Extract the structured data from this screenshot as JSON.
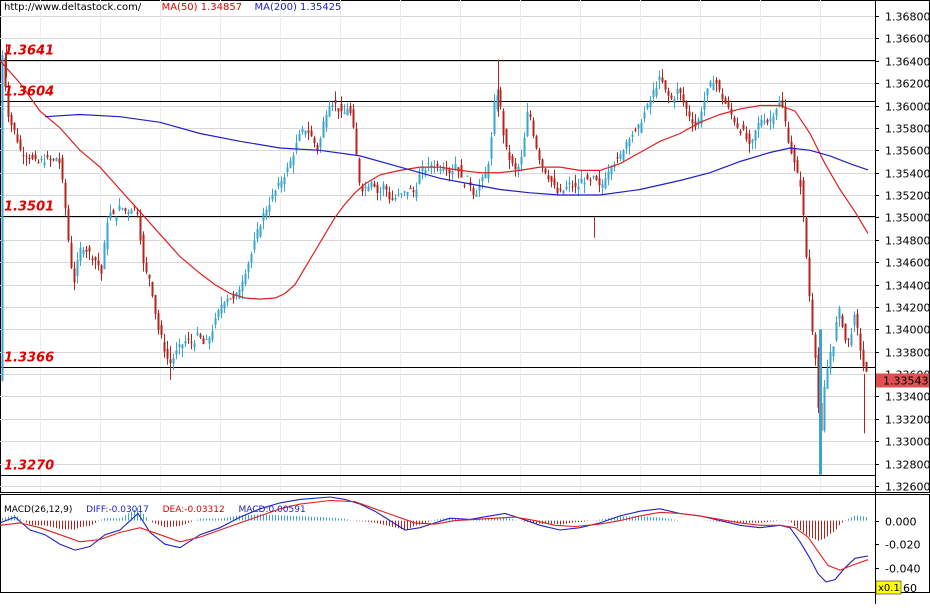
{
  "header": {
    "source": "http://www.deltastock.com/",
    "ma50_label": "MA(50)",
    "ma50_value": "1.34857",
    "ma200_label": "MA(200)",
    "ma200_value": "1.35425"
  },
  "colors": {
    "up_candle": "#3aa6cf",
    "down_candle": "#b4241f",
    "ma50": "#e02020",
    "ma200": "#2020c8",
    "level_label": "#e00000",
    "price_tag_bg": "#e05050",
    "grid": "#d7d7d7"
  },
  "chart_data": [
    {
      "type": "candlestick",
      "name": "price",
      "ylim": [
        1.3253,
        1.3693
      ],
      "y_ticks": [
        "1.36800",
        "1.36600",
        "1.36400",
        "1.36200",
        "1.36000",
        "1.35800",
        "1.35600",
        "1.35400",
        "1.35200",
        "1.35000",
        "1.34800",
        "1.34600",
        "1.34400",
        "1.34200",
        "1.34000",
        "1.33800",
        "1.33600",
        "1.33400",
        "1.33200",
        "1.33000",
        "1.32800",
        "1.32600"
      ],
      "last_price": "1.33543",
      "levels": [
        {
          "label": "1.3641",
          "value": 1.3641
        },
        {
          "label": "1.3604",
          "value": 1.3604
        },
        {
          "label": "1.3501",
          "value": 1.3501
        },
        {
          "label": "1.3366",
          "value": 1.3366
        },
        {
          "label": "1.3270",
          "value": 1.327
        }
      ],
      "close_path": [
        [
          0,
          1.3625
        ],
        [
          3,
          1.3655
        ],
        [
          6,
          1.36
        ],
        [
          10,
          1.3585
        ],
        [
          15,
          1.3575
        ],
        [
          20,
          1.356
        ],
        [
          28,
          1.3555
        ],
        [
          36,
          1.3548
        ],
        [
          44,
          1.3552
        ],
        [
          52,
          1.355
        ],
        [
          58,
          1.3555
        ],
        [
          63,
          1.3525
        ],
        [
          66,
          1.35
        ],
        [
          69,
          1.347
        ],
        [
          72,
          1.345
        ],
        [
          75,
          1.344
        ],
        [
          78,
          1.3468
        ],
        [
          82,
          1.3475
        ],
        [
          87,
          1.347
        ],
        [
          92,
          1.3465
        ],
        [
          97,
          1.346
        ],
        [
          101,
          1.345
        ],
        [
          104,
          1.3475
        ],
        [
          108,
          1.3505
        ],
        [
          114,
          1.35
        ],
        [
          120,
          1.351
        ],
        [
          126,
          1.3505
        ],
        [
          132,
          1.351
        ],
        [
          138,
          1.3505
        ],
        [
          142,
          1.346
        ],
        [
          146,
          1.345
        ],
        [
          150,
          1.3445
        ],
        [
          154,
          1.342
        ],
        [
          158,
          1.34
        ],
        [
          162,
          1.339
        ],
        [
          166,
          1.3375
        ],
        [
          170,
          1.337
        ],
        [
          175,
          1.3378
        ],
        [
          180,
          1.3385
        ],
        [
          186,
          1.339
        ],
        [
          192,
          1.3388
        ],
        [
          198,
          1.3395
        ],
        [
          204,
          1.3385
        ],
        [
          210,
          1.3395
        ],
        [
          216,
          1.341
        ],
        [
          222,
          1.3425
        ],
        [
          228,
          1.343
        ],
        [
          234,
          1.3425
        ],
        [
          240,
          1.344
        ],
        [
          246,
          1.3455
        ],
        [
          252,
          1.347
        ],
        [
          258,
          1.349
        ],
        [
          264,
          1.3505
        ],
        [
          270,
          1.3515
        ],
        [
          276,
          1.3525
        ],
        [
          282,
          1.3535
        ],
        [
          288,
          1.3545
        ],
        [
          294,
          1.356
        ],
        [
          300,
          1.3575
        ],
        [
          306,
          1.358
        ],
        [
          312,
          1.357
        ],
        [
          318,
          1.356
        ],
        [
          324,
          1.359
        ],
        [
          330,
          1.3605
        ],
        [
          336,
          1.36
        ],
        [
          342,
          1.359
        ],
        [
          348,
          1.36
        ],
        [
          352,
          1.3585
        ],
        [
          356,
          1.3555
        ],
        [
          360,
          1.3525
        ],
        [
          366,
          1.3528
        ],
        [
          372,
          1.3535
        ],
        [
          378,
          1.352
        ],
        [
          384,
          1.353
        ],
        [
          390,
          1.3515
        ],
        [
          396,
          1.3518
        ],
        [
          402,
          1.352
        ],
        [
          408,
          1.3525
        ],
        [
          414,
          1.3522
        ],
        [
          420,
          1.354
        ],
        [
          426,
          1.3545
        ],
        [
          432,
          1.3548
        ],
        [
          438,
          1.3545
        ],
        [
          444,
          1.3548
        ],
        [
          450,
          1.354
        ],
        [
          456,
          1.355
        ],
        [
          462,
          1.353
        ],
        [
          468,
          1.3535
        ],
        [
          474,
          1.352
        ],
        [
          480,
          1.353
        ],
        [
          486,
          1.354
        ],
        [
          490,
          1.356
        ],
        [
          494,
          1.36
        ],
        [
          498,
          1.3615
        ],
        [
          502,
          1.358
        ],
        [
          506,
          1.356
        ],
        [
          510,
          1.355
        ],
        [
          516,
          1.354
        ],
        [
          522,
          1.3555
        ],
        [
          528,
          1.36
        ],
        [
          534,
          1.357
        ],
        [
          540,
          1.355
        ],
        [
          546,
          1.354
        ],
        [
          552,
          1.353
        ],
        [
          558,
          1.352
        ],
        [
          564,
          1.3525
        ],
        [
          570,
          1.353
        ],
        [
          576,
          1.3525
        ],
        [
          582,
          1.3535
        ],
        [
          588,
          1.353
        ],
        [
          594,
          1.3535
        ],
        [
          600,
          1.3525
        ],
        [
          606,
          1.354
        ],
        [
          612,
          1.355
        ],
        [
          618,
          1.355
        ],
        [
          624,
          1.3565
        ],
        [
          630,
          1.3575
        ],
        [
          636,
          1.3575
        ],
        [
          642,
          1.359
        ],
        [
          648,
          1.36
        ],
        [
          654,
          1.3615
        ],
        [
          660,
          1.3625
        ],
        [
          666,
          1.361
        ],
        [
          672,
          1.3605
        ],
        [
          678,
          1.3615
        ],
        [
          684,
          1.36
        ],
        [
          690,
          1.359
        ],
        [
          696,
          1.358
        ],
        [
          702,
          1.36
        ],
        [
          708,
          1.3615
        ],
        [
          714,
          1.3625
        ],
        [
          720,
          1.361
        ],
        [
          726,
          1.36
        ],
        [
          732,
          1.359
        ],
        [
          738,
          1.358
        ],
        [
          744,
          1.3575
        ],
        [
          750,
          1.356
        ],
        [
          756,
          1.358
        ],
        [
          762,
          1.359
        ],
        [
          768,
          1.3585
        ],
        [
          774,
          1.3595
        ],
        [
          780,
          1.3605
        ],
        [
          784,
          1.359
        ],
        [
          788,
          1.357
        ],
        [
          792,
          1.3555
        ],
        [
          796,
          1.354
        ],
        [
          800,
          1.353
        ],
        [
          804,
          1.349
        ],
        [
          808,
          1.344
        ],
        [
          812,
          1.34
        ],
        [
          816,
          1.337
        ],
        [
          820,
          1.329
        ],
        [
          823,
          1.334
        ],
        [
          826,
          1.336
        ],
        [
          830,
          1.338
        ],
        [
          834,
          1.339
        ],
        [
          838,
          1.342
        ],
        [
          842,
          1.3405
        ],
        [
          846,
          1.3385
        ],
        [
          850,
          1.3395
        ],
        [
          854,
          1.341
        ],
        [
          858,
          1.3395
        ],
        [
          862,
          1.337
        ],
        [
          866,
          1.336
        ],
        [
          868,
          1.33543
        ]
      ],
      "ma50_path": [
        [
          0,
          1.364
        ],
        [
          20,
          1.362
        ],
        [
          40,
          1.3595
        ],
        [
          60,
          1.358
        ],
        [
          80,
          1.356
        ],
        [
          100,
          1.3545
        ],
        [
          120,
          1.3525
        ],
        [
          140,
          1.3505
        ],
        [
          160,
          1.3485
        ],
        [
          180,
          1.3465
        ],
        [
          200,
          1.345
        ],
        [
          215,
          1.344
        ],
        [
          230,
          1.3432
        ],
        [
          245,
          1.3428
        ],
        [
          260,
          1.3427
        ],
        [
          275,
          1.3428
        ],
        [
          285,
          1.3432
        ],
        [
          295,
          1.344
        ],
        [
          305,
          1.3455
        ],
        [
          315,
          1.347
        ],
        [
          325,
          1.3485
        ],
        [
          335,
          1.35
        ],
        [
          345,
          1.3512
        ],
        [
          355,
          1.3522
        ],
        [
          365,
          1.353
        ],
        [
          380,
          1.3538
        ],
        [
          400,
          1.3542
        ],
        [
          420,
          1.3545
        ],
        [
          440,
          1.3545
        ],
        [
          460,
          1.3542
        ],
        [
          480,
          1.354
        ],
        [
          500,
          1.354
        ],
        [
          520,
          1.3542
        ],
        [
          540,
          1.3545
        ],
        [
          560,
          1.3545
        ],
        [
          580,
          1.3542
        ],
        [
          600,
          1.3542
        ],
        [
          620,
          1.3548
        ],
        [
          640,
          1.3558
        ],
        [
          660,
          1.3568
        ],
        [
          680,
          1.3575
        ],
        [
          700,
          1.3585
        ],
        [
          720,
          1.3592
        ],
        [
          740,
          1.3597
        ],
        [
          760,
          1.36
        ],
        [
          780,
          1.36
        ],
        [
          795,
          1.3595
        ],
        [
          810,
          1.3575
        ],
        [
          825,
          1.3548
        ],
        [
          840,
          1.3525
        ],
        [
          855,
          1.3505
        ],
        [
          868,
          1.34857
        ]
      ],
      "ma200_path": [
        [
          45,
          1.359
        ],
        [
          80,
          1.3592
        ],
        [
          120,
          1.359
        ],
        [
          160,
          1.3585
        ],
        [
          200,
          1.3575
        ],
        [
          240,
          1.3568
        ],
        [
          280,
          1.3562
        ],
        [
          320,
          1.356
        ],
        [
          360,
          1.3555
        ],
        [
          400,
          1.3545
        ],
        [
          440,
          1.3535
        ],
        [
          470,
          1.353
        ],
        [
          500,
          1.3525
        ],
        [
          530,
          1.3522
        ],
        [
          560,
          1.352
        ],
        [
          600,
          1.352
        ],
        [
          640,
          1.3525
        ],
        [
          680,
          1.3533
        ],
        [
          710,
          1.354
        ],
        [
          740,
          1.355
        ],
        [
          770,
          1.3558
        ],
        [
          790,
          1.3562
        ],
        [
          810,
          1.356
        ],
        [
          830,
          1.3555
        ],
        [
          850,
          1.3548
        ],
        [
          868,
          1.35425
        ]
      ]
    },
    {
      "type": "bar_and_line",
      "name": "MACD",
      "title": "MACD(26,12,9)",
      "diff_label": "DIFF:-0.03017",
      "dea_label": "DEA:-0.03312",
      "macd_label": "MACD:0.00591",
      "ylim": [
        -0.058,
        0.02
      ],
      "y_ticks": [
        "0.000",
        "-0.020",
        "-0.040"
      ],
      "last_tick_fragment": "60",
      "scale_badge": "x0.1",
      "diff_path": [
        [
          0,
          -0.002
        ],
        [
          15,
          0.003
        ],
        [
          30,
          -0.008
        ],
        [
          45,
          -0.012
        ],
        [
          60,
          -0.02
        ],
        [
          75,
          -0.025
        ],
        [
          90,
          -0.022
        ],
        [
          105,
          -0.012
        ],
        [
          120,
          -0.008
        ],
        [
          138,
          0.006
        ],
        [
          150,
          -0.01
        ],
        [
          165,
          -0.02
        ],
        [
          180,
          -0.023
        ],
        [
          200,
          -0.012
        ],
        [
          220,
          -0.006
        ],
        [
          240,
          0.003
        ],
        [
          260,
          0.01
        ],
        [
          280,
          0.015
        ],
        [
          300,
          0.018
        ],
        [
          330,
          0.02
        ],
        [
          345,
          0.018
        ],
        [
          360,
          0.014
        ],
        [
          375,
          0.008
        ],
        [
          390,
          0.0
        ],
        [
          405,
          -0.008
        ],
        [
          420,
          -0.006
        ],
        [
          435,
          -0.002
        ],
        [
          450,
          0.002
        ],
        [
          470,
          0.001
        ],
        [
          490,
          0.004
        ],
        [
          505,
          0.006
        ],
        [
          520,
          0.002
        ],
        [
          540,
          -0.004
        ],
        [
          560,
          -0.008
        ],
        [
          580,
          -0.006
        ],
        [
          600,
          -0.002
        ],
        [
          620,
          0.004
        ],
        [
          640,
          0.008
        ],
        [
          660,
          0.01
        ],
        [
          680,
          0.006
        ],
        [
          700,
          0.004
        ],
        [
          720,
          0.0
        ],
        [
          740,
          -0.004
        ],
        [
          760,
          -0.006
        ],
        [
          780,
          -0.004
        ],
        [
          790,
          -0.006
        ],
        [
          800,
          -0.018
        ],
        [
          810,
          -0.032
        ],
        [
          818,
          -0.045
        ],
        [
          826,
          -0.052
        ],
        [
          835,
          -0.05
        ],
        [
          845,
          -0.04
        ],
        [
          855,
          -0.032
        ],
        [
          868,
          -0.03
        ]
      ],
      "dea_path": [
        [
          0,
          -0.004
        ],
        [
          20,
          -0.002
        ],
        [
          40,
          -0.006
        ],
        [
          60,
          -0.012
        ],
        [
          80,
          -0.018
        ],
        [
          100,
          -0.016
        ],
        [
          120,
          -0.01
        ],
        [
          140,
          -0.006
        ],
        [
          160,
          -0.012
        ],
        [
          180,
          -0.018
        ],
        [
          200,
          -0.014
        ],
        [
          220,
          -0.008
        ],
        [
          240,
          -0.002
        ],
        [
          260,
          0.004
        ],
        [
          280,
          0.01
        ],
        [
          300,
          0.014
        ],
        [
          330,
          0.017
        ],
        [
          355,
          0.016
        ],
        [
          375,
          0.01
        ],
        [
          395,
          0.004
        ],
        [
          415,
          -0.002
        ],
        [
          435,
          -0.003
        ],
        [
          455,
          0.0
        ],
        [
          475,
          0.001
        ],
        [
          495,
          0.002
        ],
        [
          515,
          0.003
        ],
        [
          535,
          0.0
        ],
        [
          555,
          -0.004
        ],
        [
          575,
          -0.005
        ],
        [
          600,
          -0.003
        ],
        [
          620,
          0.0
        ],
        [
          640,
          0.004
        ],
        [
          660,
          0.007
        ],
        [
          680,
          0.006
        ],
        [
          700,
          0.004
        ],
        [
          720,
          0.001
        ],
        [
          740,
          -0.002
        ],
        [
          760,
          -0.004
        ],
        [
          780,
          -0.004
        ],
        [
          795,
          -0.006
        ],
        [
          808,
          -0.014
        ],
        [
          818,
          -0.026
        ],
        [
          828,
          -0.038
        ],
        [
          840,
          -0.042
        ],
        [
          852,
          -0.038
        ],
        [
          868,
          -0.03312
        ]
      ]
    }
  ]
}
